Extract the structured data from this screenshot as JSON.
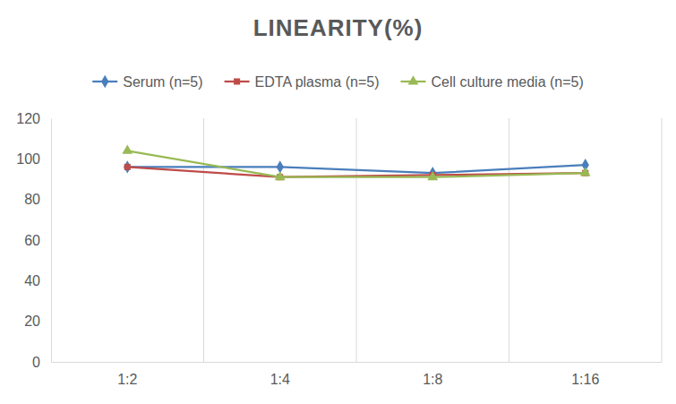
{
  "chart_data": {
    "type": "line",
    "title": "LINEARITY(%)",
    "categories": [
      "1:2",
      "1:4",
      "1:8",
      "1:16"
    ],
    "series": [
      {
        "name": "Serum (n=5)",
        "color": "#4a7ebb",
        "marker": "diamond",
        "values": [
          96,
          96,
          93,
          97
        ]
      },
      {
        "name": "EDTA plasma (n=5)",
        "color": "#be4b48",
        "marker": "square",
        "values": [
          96,
          91,
          92,
          93
        ]
      },
      {
        "name": "Cell culture media (n=5)",
        "color": "#98b954",
        "marker": "triangle",
        "values": [
          104,
          91,
          91,
          93
        ]
      }
    ],
    "ylim": [
      0,
      120
    ],
    "yticks": [
      0,
      20,
      40,
      60,
      80,
      100,
      120
    ],
    "grid": true,
    "legend": "top"
  }
}
